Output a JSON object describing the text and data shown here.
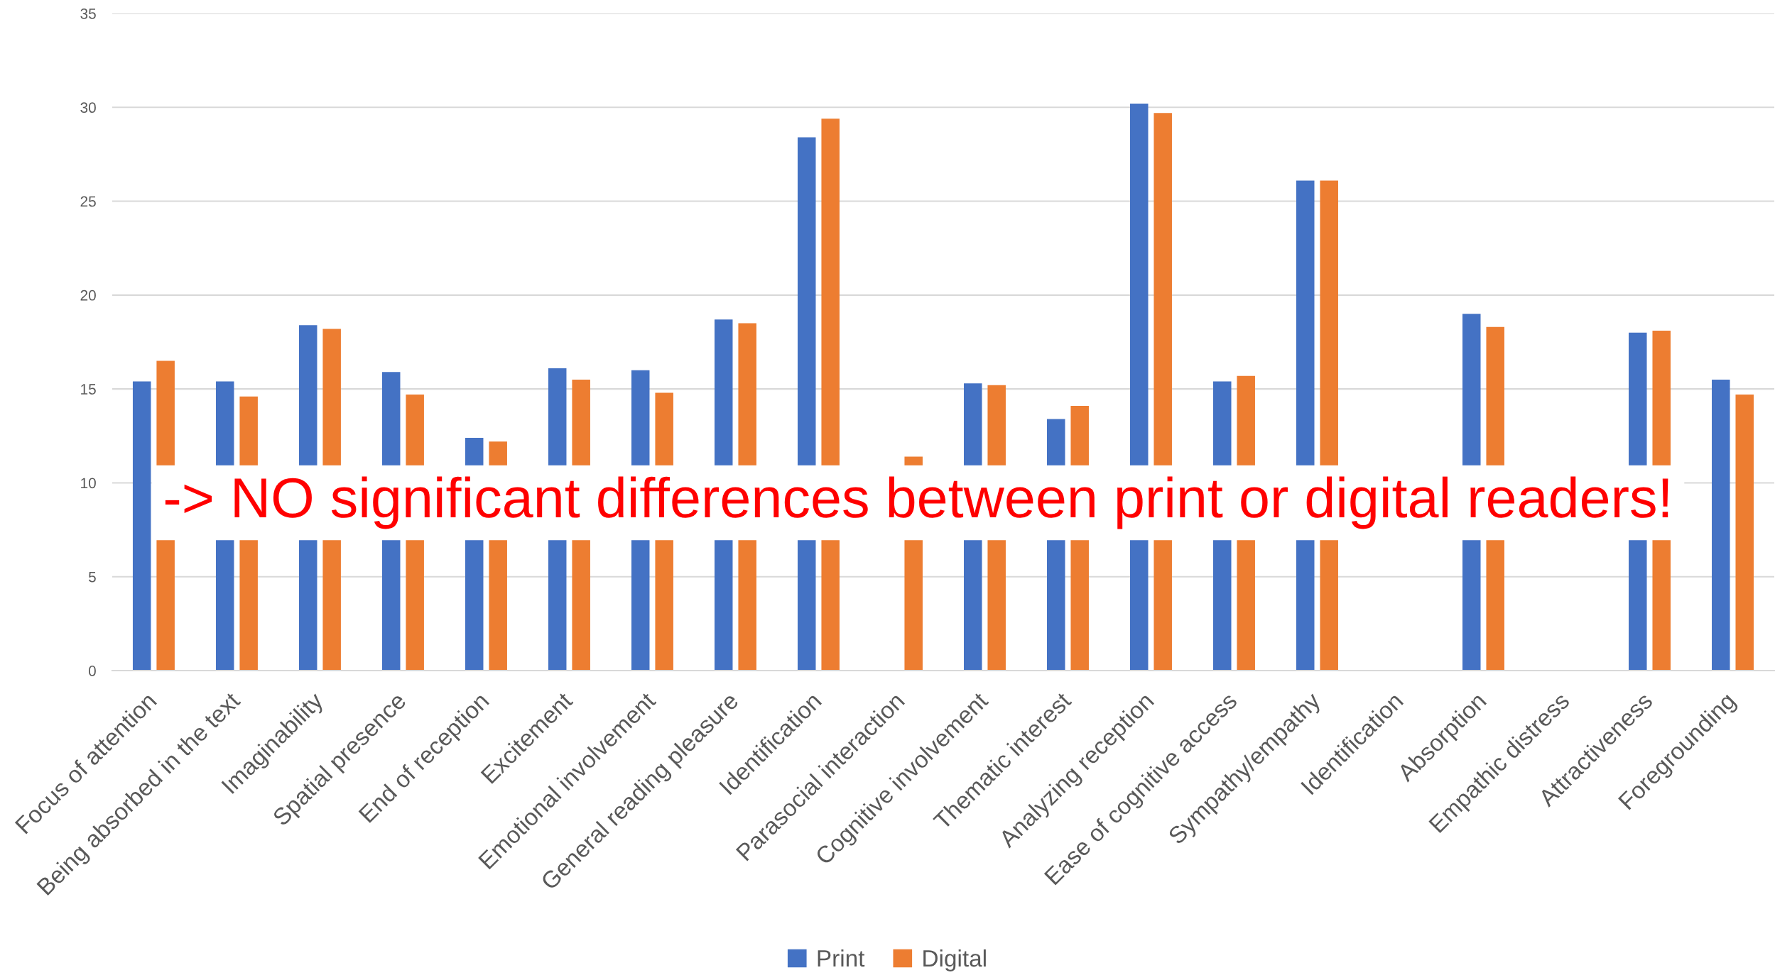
{
  "chart_data": {
    "type": "bar",
    "categories": [
      "Focus of attention",
      "Being absorbed in the text",
      "Imaginability",
      "Spatial presence",
      "End of reception",
      "Excitement",
      "Emotional involvement",
      "General reading pleasure",
      "Identification",
      "Parasocial interaction",
      "Cognitive involvement",
      "Thematic interest",
      "Analyzing reception",
      "Ease of cognitive access",
      "Sympathy/empathy",
      "Identification",
      "Absorption",
      "Empathic distress",
      "Attractiveness",
      "Foregrounding"
    ],
    "series": [
      {
        "name": "Print",
        "color": "#4472c4",
        "values": [
          15.4,
          15.4,
          18.4,
          15.9,
          12.4,
          16.1,
          16.0,
          18.7,
          28.4,
          null,
          15.3,
          13.4,
          30.2,
          15.4,
          26.1,
          null,
          19.0,
          null,
          18.0,
          15.5
        ]
      },
      {
        "name": "Digital",
        "color": "#ed7d31",
        "values": [
          16.5,
          14.6,
          18.2,
          14.7,
          12.2,
          15.5,
          14.8,
          18.5,
          29.4,
          11.4,
          15.2,
          14.1,
          29.7,
          15.7,
          26.1,
          null,
          18.3,
          null,
          18.1,
          14.7
        ]
      }
    ],
    "ylim": [
      0,
      35
    ],
    "yticks": [
      0,
      5,
      10,
      15,
      20,
      25,
      30,
      35
    ],
    "grid": "y",
    "legend": "bottom",
    "annotations": [
      "-> NO significant differences between print or digital readers!"
    ]
  }
}
